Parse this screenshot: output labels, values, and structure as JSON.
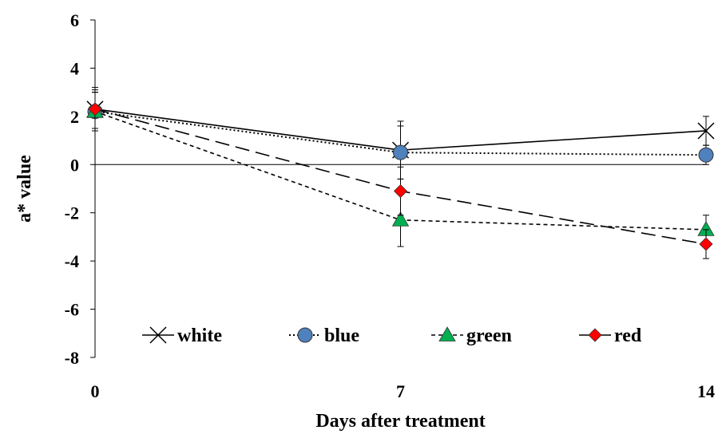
{
  "chart_data": {
    "type": "line",
    "title": "",
    "xlabel": "Days after treatment",
    "ylabel": "a* value",
    "x": [
      0,
      7,
      14
    ],
    "xticks": [
      "0",
      "7",
      "14"
    ],
    "yticks": [
      "6",
      "4",
      "2",
      "0",
      "-2",
      "-4",
      "-6",
      "-8"
    ],
    "xlim": [
      0,
      14
    ],
    "ylim": [
      -8,
      6
    ],
    "grid": false,
    "legend_position": "bottom-inside",
    "series": [
      {
        "name": "white",
        "values": [
          2.3,
          0.6,
          1.4
        ],
        "errors": [
          0.9,
          1.2,
          0.6
        ],
        "marker": "x",
        "line": "solid",
        "color": "#000000"
      },
      {
        "name": "blue",
        "values": [
          2.2,
          0.5,
          0.4
        ],
        "errors": [
          0.8,
          1.1,
          0.4
        ],
        "marker": "circle",
        "line": "dotted",
        "color": "#4F81BD"
      },
      {
        "name": "green",
        "values": [
          2.2,
          -2.3,
          -2.7
        ],
        "errors": [
          0.8,
          1.1,
          0.6
        ],
        "marker": "triangle",
        "line": "short-dash",
        "color": "#00B050"
      },
      {
        "name": "red",
        "values": [
          2.3,
          -1.1,
          -3.3
        ],
        "errors": [
          0.8,
          1.0,
          0.6
        ],
        "marker": "diamond",
        "line": "long-dash",
        "color": "#FF0000"
      }
    ]
  }
}
